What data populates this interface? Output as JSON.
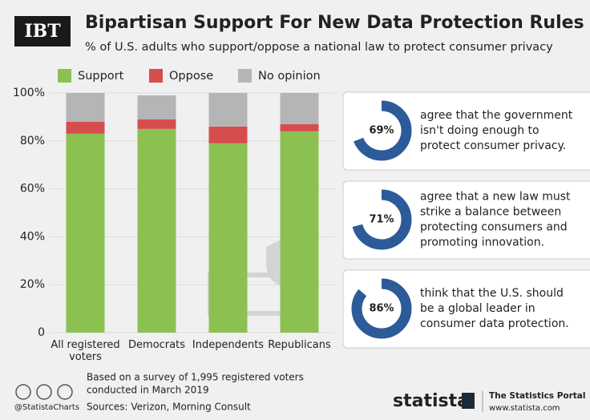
{
  "header": {
    "logo": "IBT",
    "title": "Bipartisan Support For New Data Protection Rules",
    "subtitle": "% of U.S. adults who support/oppose a national law to protect consumer privacy"
  },
  "chart_data": [
    {
      "type": "bar",
      "stacked": true,
      "categories": [
        "All registered voters",
        "Democrats",
        "Independents",
        "Republicans"
      ],
      "series": [
        {
          "name": "Support",
          "color": "#8cc152",
          "values": [
            83,
            85,
            79,
            84
          ]
        },
        {
          "name": "Oppose",
          "color": "#d64d4d",
          "values": [
            5,
            4,
            7,
            3
          ]
        },
        {
          "name": "No opinion",
          "color": "#b5b5b5",
          "values": [
            12,
            10,
            14,
            13
          ]
        }
      ],
      "ylim": [
        0,
        100
      ],
      "yticks": [
        0,
        {
          "value": 20,
          "label": "20%"
        },
        {
          "value": 40,
          "label": "40%"
        },
        {
          "value": 60,
          "label": "60%"
        },
        {
          "value": 80,
          "label": "80%"
        },
        {
          "value": 100,
          "label": "100%"
        }
      ],
      "grid": true
    },
    {
      "type": "donut",
      "color": "#2d5a98",
      "values": [
        69
      ],
      "value_labels": [
        "69%"
      ],
      "text": [
        "agree that the government",
        "isn't doing enough to",
        "protect consumer privacy."
      ]
    },
    {
      "type": "donut",
      "color": "#2d5a98",
      "values": [
        71
      ],
      "value_labels": [
        "71%"
      ],
      "text": [
        "agree that a new law must",
        "strike a balance between",
        "protecting consumers and",
        "promoting innovation."
      ]
    },
    {
      "type": "donut",
      "color": "#2d5a98",
      "values": [
        86
      ],
      "value_labels": [
        "86%"
      ],
      "text": [
        "think that the U.S. should",
        "be a global leader in",
        "consumer data protection."
      ]
    }
  ],
  "footer": {
    "notes": [
      "Based on a survey of 1,995 registered voters",
      "conducted in March 2019"
    ],
    "source": "Sources: Verizon, Morning Consult",
    "handle": "@StatistaCharts",
    "brand": "statista",
    "portal": "The Statistics Portal",
    "url": "www.statista.com"
  }
}
